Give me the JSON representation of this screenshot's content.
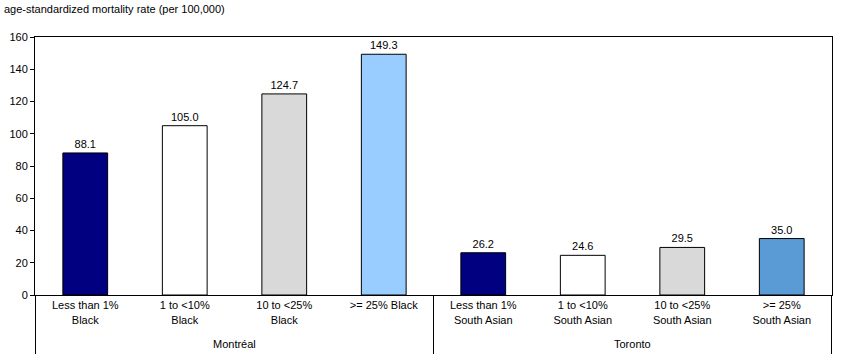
{
  "chart_data": {
    "type": "bar",
    "y_label": "age-standardized mortality rate (per 100,000)",
    "categories": [
      "Less than 1%\nBlack",
      "1 to <10%\nBlack",
      "10 to <25%\nBlack",
      ">= 25% Black",
      "Less than 1%\nSouth Asian",
      "1 to <10%\nSouth Asian",
      "10 to <25%\nSouth Asian",
      ">= 25%\nSouth Asian"
    ],
    "groups": [
      "Montréal",
      "Montréal",
      "Montréal",
      "Montréal",
      "Toronto",
      "Toronto",
      "Toronto",
      "Toronto"
    ],
    "values": [
      88.1,
      105.0,
      124.7,
      149.3,
      26.2,
      24.6,
      29.5,
      35.0
    ],
    "value_labels": [
      "88.1",
      "105.0",
      "124.7",
      "149.3",
      "26.2",
      "24.6",
      "29.5",
      "35.0"
    ],
    "colors": [
      "#000080",
      "#ffffff",
      "#d9d9d9",
      "#99ccff",
      "#000080",
      "#ffffff",
      "#d9d9d9",
      "#5b9bd5"
    ],
    "ylim": [
      0,
      160
    ],
    "yticks": [
      0,
      20,
      40,
      60,
      80,
      100,
      120,
      140,
      160
    ],
    "grid": false,
    "data_labels": true
  }
}
